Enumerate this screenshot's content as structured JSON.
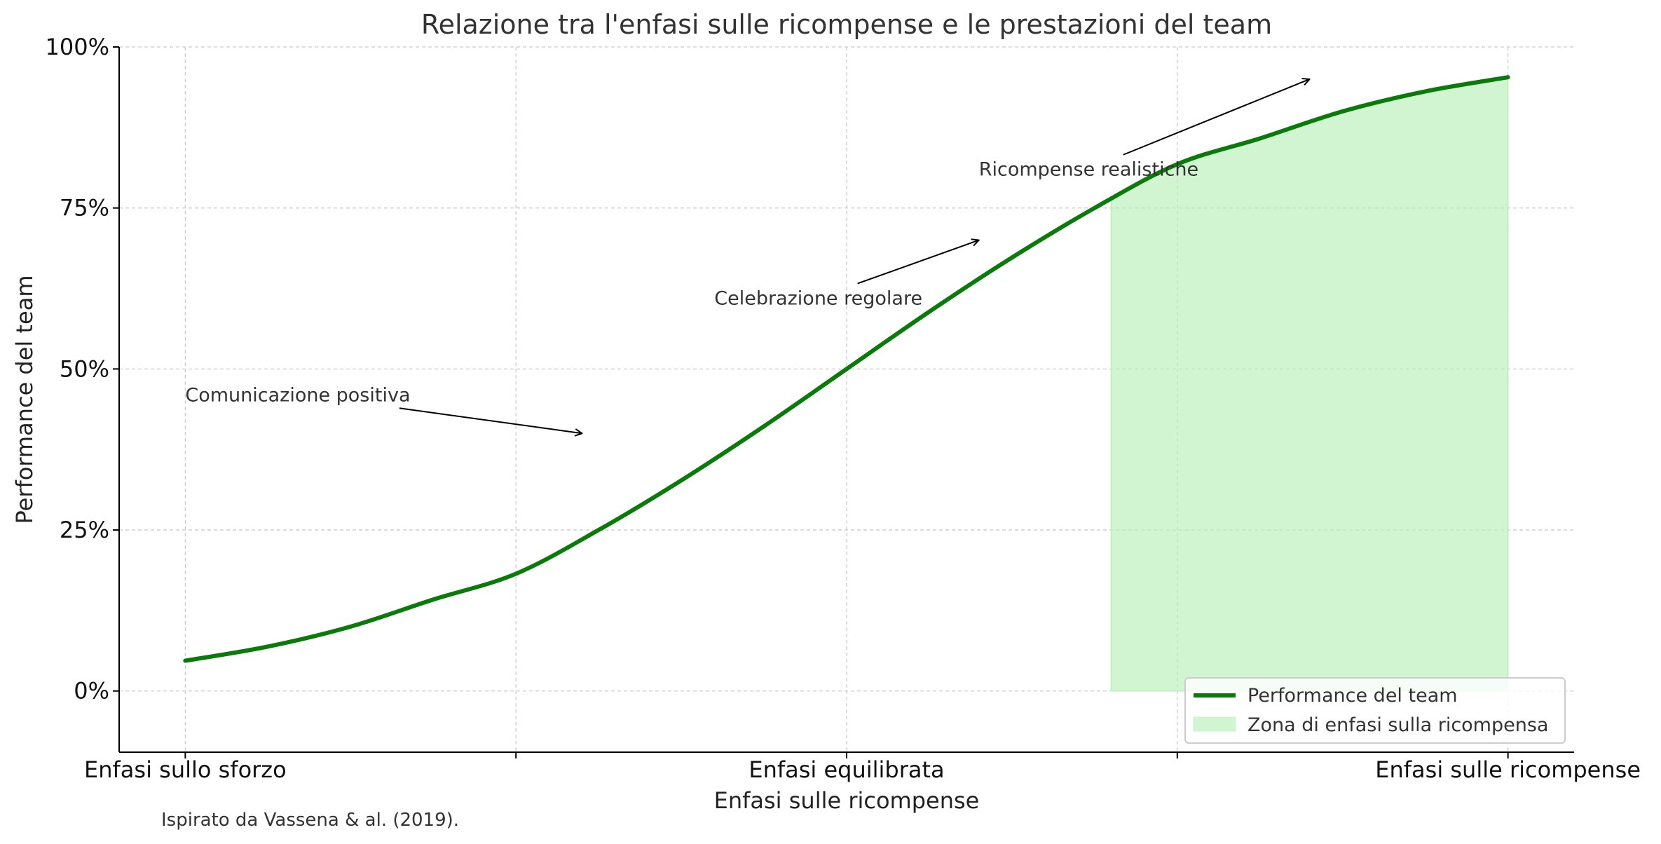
{
  "chart_data": {
    "type": "line",
    "title": "Relazione tra l'enfasi sulle ricompense e le prestazioni del team",
    "xlabel": "Enfasi sulle ricompense",
    "ylabel": "Performance del team",
    "xlim": [
      -0.2,
      4.2
    ],
    "ylim": [
      -0.095,
      1.0
    ],
    "x_ticks": [
      {
        "x": 0,
        "label": "Enfasi sullo sforzo"
      },
      {
        "x": 1,
        "label": ""
      },
      {
        "x": 2,
        "label": "Enfasi equilibrata"
      },
      {
        "x": 3,
        "label": ""
      },
      {
        "x": 4,
        "label": "Enfasi sulle ricompense"
      }
    ],
    "y_ticks": [
      {
        "y": 0,
        "label": "0%"
      },
      {
        "y": 0.25,
        "label": "25%"
      },
      {
        "y": 0.5,
        "label": "50%"
      },
      {
        "y": 0.75,
        "label": "75%"
      },
      {
        "y": 1.0,
        "label": "100%"
      }
    ],
    "series": [
      {
        "name": "Performance del team",
        "color": "#0a7a0a",
        "x": [
          0,
          0.25,
          0.5,
          0.75,
          1.0,
          1.25,
          1.5,
          1.75,
          2.0,
          2.25,
          2.5,
          2.75,
          3.0,
          3.25,
          3.5,
          3.75,
          4.0
        ],
        "y": [
          0.047,
          0.069,
          0.1,
          0.142,
          0.182,
          0.25,
          0.327,
          0.411,
          0.5,
          0.589,
          0.673,
          0.75,
          0.818,
          0.858,
          0.9,
          0.931,
          0.953
        ]
      }
    ],
    "shaded_region": {
      "name": "Zona di enfasi sulla ricompensa",
      "x_start": 2.8,
      "x_end": 4.0,
      "color": "#b8f0b8"
    },
    "annotations": [
      {
        "text": "Comunicazione positiva",
        "text_x": 0,
        "text_y": 0.45,
        "arrow_x": 1.2,
        "arrow_y": 0.4
      },
      {
        "text": "Celebrazione regolare",
        "text_x": 1.6,
        "text_y": 0.6,
        "arrow_x": 2.4,
        "arrow_y": 0.7
      },
      {
        "text": "Ricompense realistiche",
        "text_x": 2.4,
        "text_y": 0.8,
        "arrow_x": 3.4,
        "arrow_y": 0.95
      }
    ],
    "grid": true,
    "legend_position": "bottom-right",
    "source": "Ispirato da Vassena & al. (2019)."
  }
}
